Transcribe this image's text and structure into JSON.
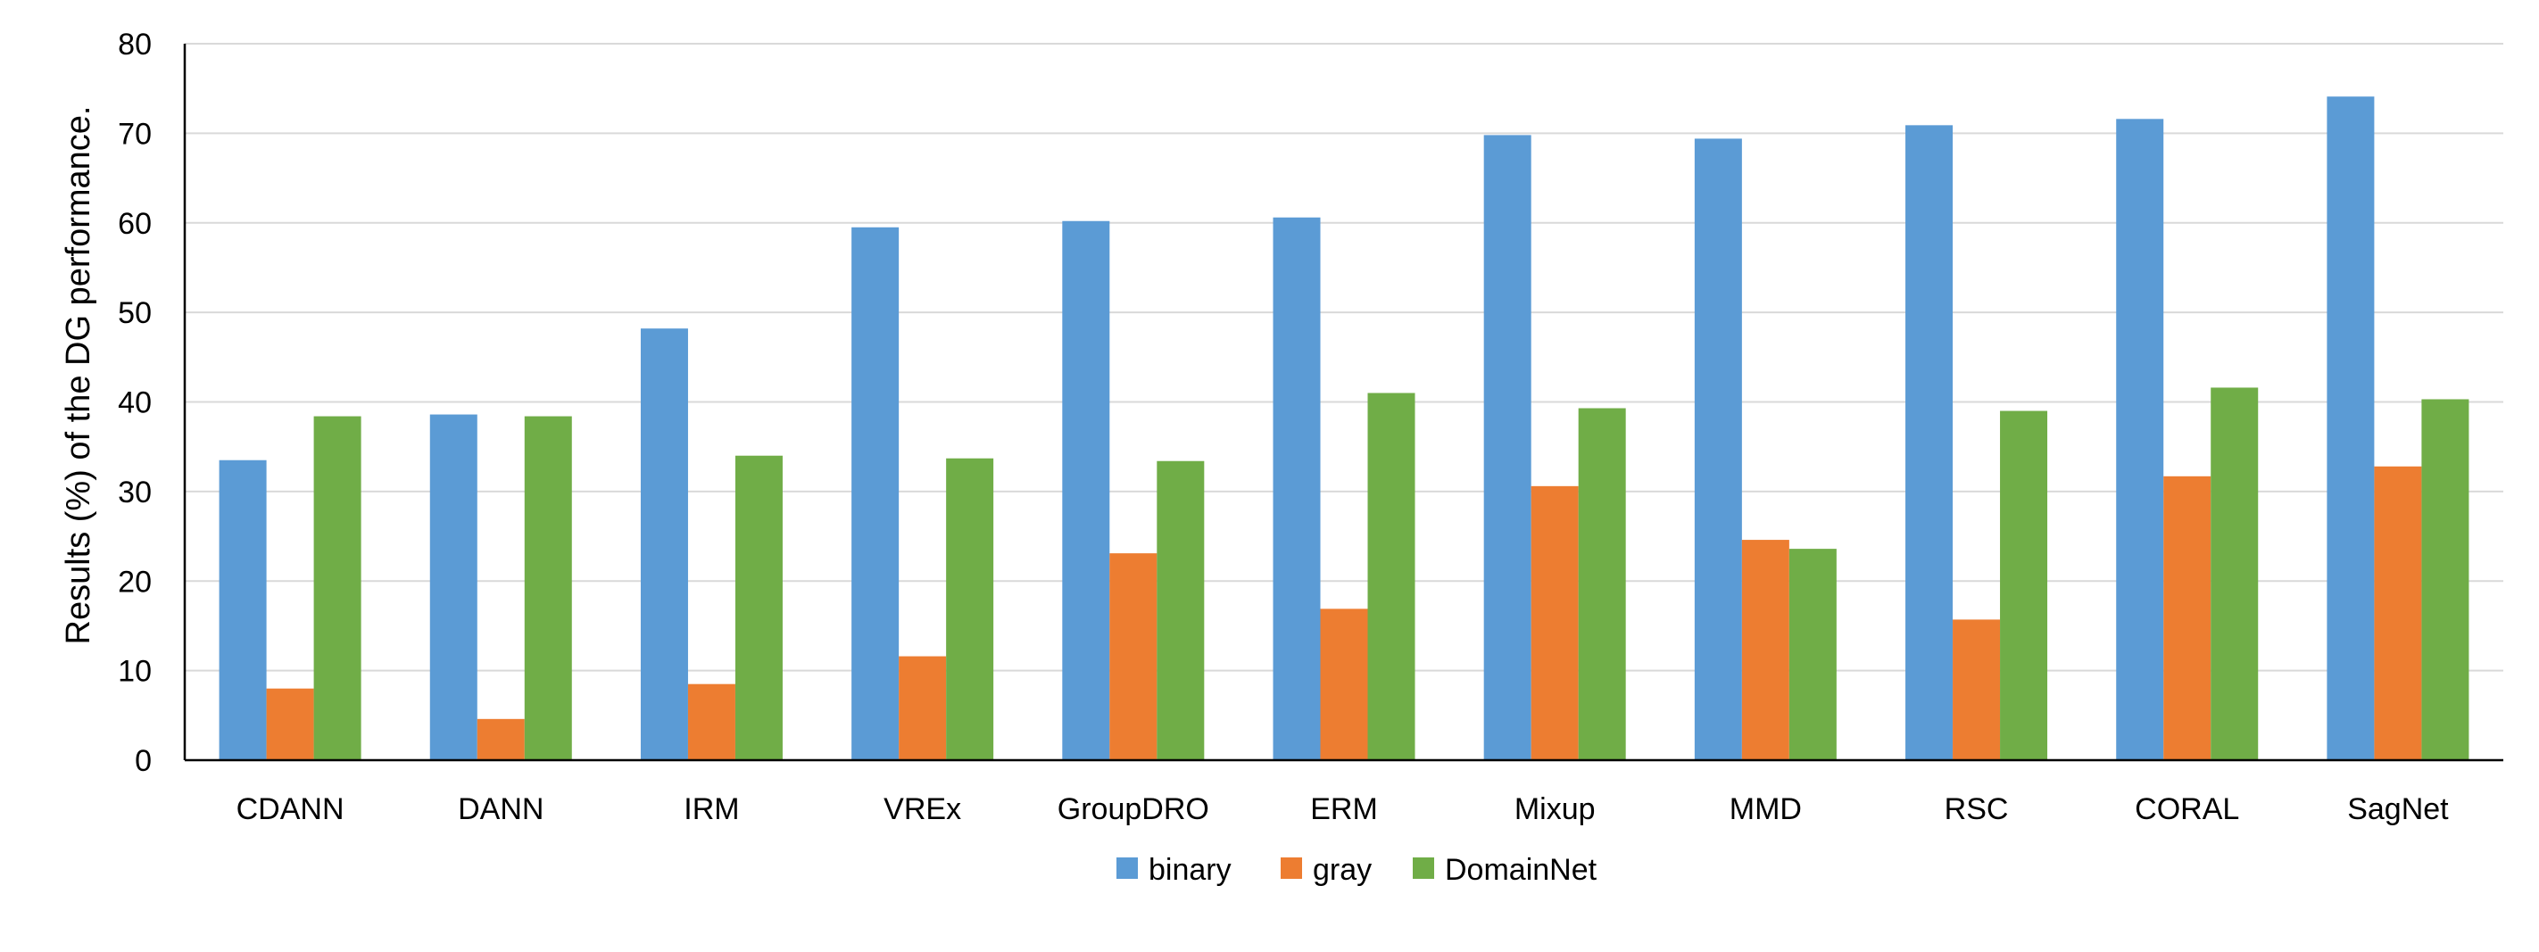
{
  "chart_data": {
    "type": "bar",
    "title": "",
    "xlabel": "",
    "ylabel": "Results (%) of the DG performance.",
    "ylim": [
      0,
      80
    ],
    "yticks": [
      0,
      10,
      20,
      30,
      40,
      50,
      60,
      70,
      80
    ],
    "grid": true,
    "legend_position": "bottom",
    "categories": [
      "CDANN",
      "DANN",
      "IRM",
      "VREx",
      "GroupDRO",
      "ERM",
      "Mixup",
      "MMD",
      "RSC",
      "CORAL",
      "SagNet"
    ],
    "series": [
      {
        "name": "binary",
        "color": "#5b9bd5",
        "values": [
          33.5,
          38.6,
          48.2,
          59.5,
          60.2,
          60.6,
          69.8,
          69.4,
          70.9,
          71.6,
          74.1
        ]
      },
      {
        "name": "gray",
        "color": "#ed7d31",
        "values": [
          8.0,
          4.6,
          8.5,
          11.6,
          23.1,
          16.9,
          30.6,
          24.6,
          15.7,
          31.7,
          32.8
        ]
      },
      {
        "name": "DomainNet",
        "color": "#70ad47",
        "values": [
          38.4,
          38.4,
          34.0,
          33.7,
          33.4,
          41.0,
          39.3,
          23.6,
          39.0,
          41.6,
          40.3
        ]
      }
    ]
  }
}
